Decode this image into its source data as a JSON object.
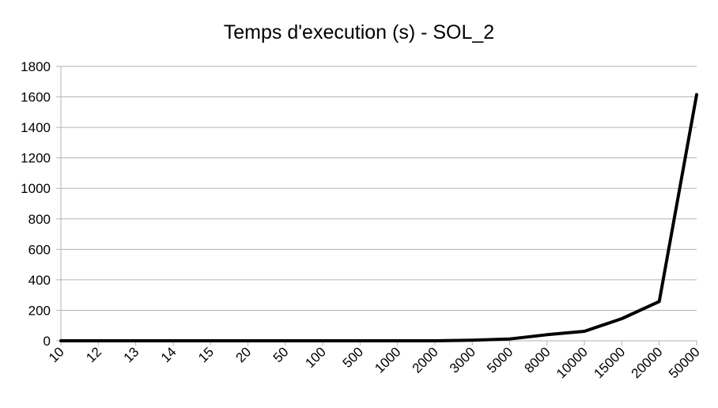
{
  "chart_data": {
    "type": "line",
    "title": "Temps d'execution (s) - SOL_2",
    "xlabel": "",
    "ylabel": "",
    "categories": [
      "10",
      "12",
      "13",
      "14",
      "15",
      "20",
      "50",
      "100",
      "500",
      "1000",
      "2000",
      "3000",
      "5000",
      "8000",
      "10000",
      "15000",
      "20000",
      "50000"
    ],
    "series": [
      {
        "values": [
          0,
          0,
          0,
          0,
          0,
          0,
          0,
          0,
          0,
          0,
          0,
          4,
          12,
          40,
          62,
          145,
          258,
          1615
        ]
      }
    ],
    "ylim": [
      0,
      1800
    ],
    "yticks": [
      0,
      200,
      400,
      600,
      800,
      1000,
      1200,
      1400,
      1600,
      1800
    ],
    "grid": "horizontal",
    "legend": "none",
    "line_color": "#000000",
    "grid_color": "#b3b3b3"
  }
}
